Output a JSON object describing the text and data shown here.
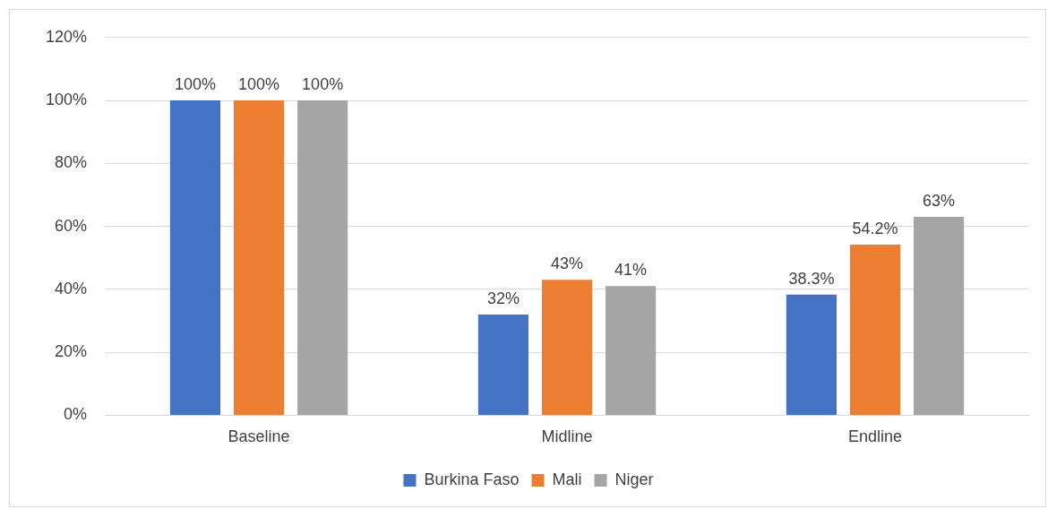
{
  "chart_data": {
    "type": "bar",
    "categories": [
      "Baseline",
      "Midline",
      "Endline"
    ],
    "series": [
      {
        "name": "Burkina Faso",
        "color": "#4472c4",
        "values": [
          100,
          32,
          38.3
        ],
        "value_labels": [
          "100%",
          "32%",
          "38.3%"
        ]
      },
      {
        "name": "Mali",
        "color": "#ed7d31",
        "values": [
          100,
          43,
          54.2
        ],
        "value_labels": [
          "100%",
          "43%",
          "54.2%"
        ]
      },
      {
        "name": "Niger",
        "color": "#a5a5a5",
        "values": [
          100,
          41,
          63
        ],
        "value_labels": [
          "100%",
          "41%",
          "63%"
        ]
      }
    ],
    "ylim": [
      0,
      120
    ],
    "yticks": [
      {
        "value": 0,
        "label": "0%"
      },
      {
        "value": 20,
        "label": "20%"
      },
      {
        "value": 40,
        "label": "40%"
      },
      {
        "value": 60,
        "label": "60%"
      },
      {
        "value": 80,
        "label": "80%"
      },
      {
        "value": 100,
        "label": "100%"
      },
      {
        "value": 120,
        "label": "120%"
      }
    ],
    "grid": "y",
    "legend": "bottom"
  }
}
